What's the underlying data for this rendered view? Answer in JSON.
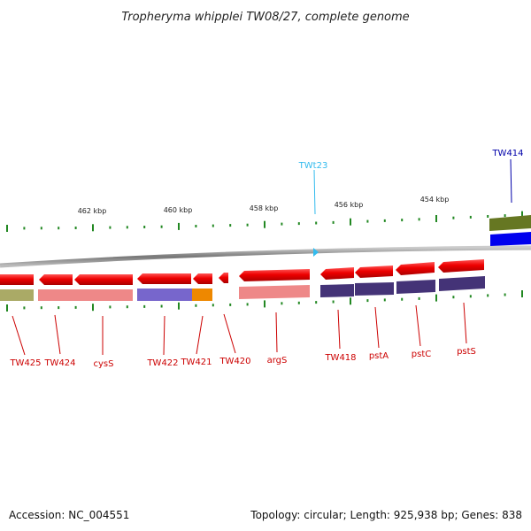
{
  "title": "Tropheryma whipplei TW08/27, complete genome",
  "footer": {
    "accession": "Accession: NC_004551",
    "summary": "Topology: circular; Length: 925,938 bp; Genes: 838"
  },
  "colors": {
    "forward_gene": "#ee1111",
    "label_red": "#cc0000",
    "trna_label": "#33bbee",
    "tw414_label": "#0000aa",
    "backbone": "#888888",
    "tick": "#228822",
    "cog_olive": "#aaaa66",
    "cog_pink": "#ee8888",
    "cog_purple": "#7766cc",
    "cog_orange": "#ee8800",
    "cog_navy": "#443377",
    "cog_olive_dark": "#667722",
    "cog_blue": "#0000ee"
  },
  "scale_labels": [
    "462 kbp",
    "460 kbp",
    "458 kbp",
    "456 kbp",
    "454 kbp"
  ],
  "gene_labels": [
    "TW425",
    "TW424",
    "cysS",
    "TW422",
    "TW421",
    "TW420",
    "argS",
    "TW418",
    "pstA",
    "pstC",
    "pstS"
  ],
  "top_labels": [
    "TWt23",
    "TW414"
  ]
}
